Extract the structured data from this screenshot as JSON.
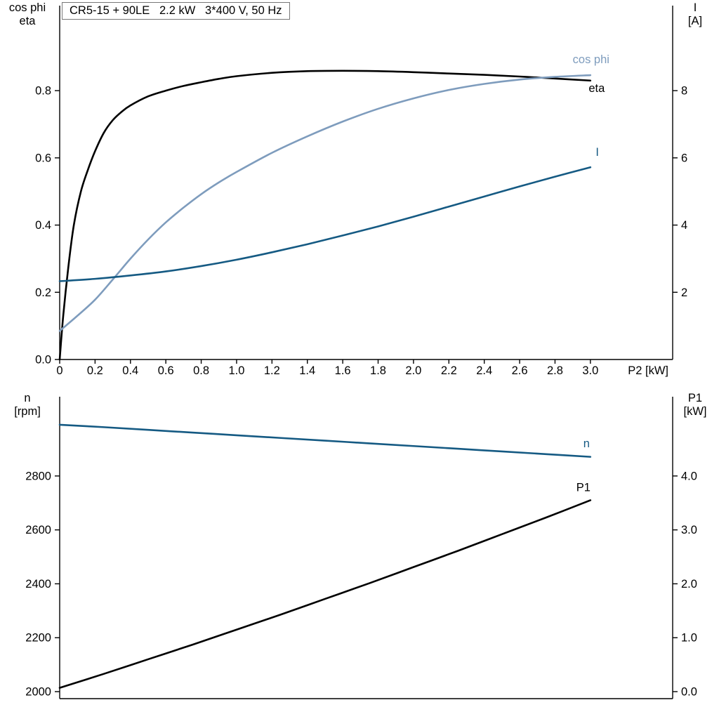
{
  "axis_titles": {
    "top_left": [
      "cos phi",
      "eta"
    ],
    "top_right": [
      "I",
      "[A]"
    ],
    "bottom_left": [
      "n",
      "[rpm]"
    ],
    "bottom_right": [
      "P1",
      "[kW]"
    ]
  },
  "colors": {
    "black": "#000000",
    "dark_blue": "#155a83",
    "light_blue": "#7e9cbd"
  },
  "chart_data": [
    {
      "type": "line",
      "title": "CR5-15 + 90LE   2.2 kW   3*400 V, 50 Hz",
      "grid": false,
      "legend": "curve-end labels",
      "axes": {
        "x": {
          "label": "P2 [kW]",
          "min": 0,
          "max": 3.465,
          "ticks": [
            0,
            0.2,
            0.4,
            0.6,
            0.8,
            1.0,
            1.2,
            1.4,
            1.6,
            1.8,
            2.0,
            2.2,
            2.4,
            2.6,
            2.8,
            3.0
          ],
          "tick_labels": [
            "0",
            "0.2",
            "0.4",
            "0.6",
            "0.8",
            "1.0",
            "1.2",
            "1.4",
            "1.6",
            "1.8",
            "2.0",
            "2.2",
            "2.4",
            "2.6",
            "2.8",
            "3.0"
          ]
        },
        "left": {
          "label": "cos phi / eta",
          "min": 0,
          "max": 1.053,
          "ticks": [
            0,
            0.2,
            0.4,
            0.6,
            0.8
          ],
          "tick_labels": [
            "0.0",
            "0.2",
            "0.4",
            "0.6",
            "0.8"
          ]
        },
        "right": {
          "label": "I [A]",
          "min": 0,
          "max": 10.53,
          "ticks": [
            2,
            4,
            6,
            8
          ],
          "tick_labels": [
            "2",
            "4",
            "6",
            "8"
          ]
        }
      },
      "series": [
        {
          "name": "eta",
          "axis": "left",
          "color": "#000000",
          "label_at": [
            2.99,
            0.796
          ],
          "points": [
            [
              0,
              0
            ],
            [
              0.02,
              0.13
            ],
            [
              0.05,
              0.28
            ],
            [
              0.08,
              0.4
            ],
            [
              0.12,
              0.5
            ],
            [
              0.16,
              0.565
            ],
            [
              0.2,
              0.62
            ],
            [
              0.25,
              0.675
            ],
            [
              0.3,
              0.712
            ],
            [
              0.35,
              0.737
            ],
            [
              0.4,
              0.756
            ],
            [
              0.5,
              0.783
            ],
            [
              0.6,
              0.8
            ],
            [
              0.7,
              0.814
            ],
            [
              0.8,
              0.825
            ],
            [
              0.9,
              0.835
            ],
            [
              1.0,
              0.843
            ],
            [
              1.2,
              0.853
            ],
            [
              1.4,
              0.858
            ],
            [
              1.6,
              0.859
            ],
            [
              1.8,
              0.858
            ],
            [
              2.0,
              0.855
            ],
            [
              2.2,
              0.851
            ],
            [
              2.4,
              0.847
            ],
            [
              2.6,
              0.842
            ],
            [
              2.8,
              0.836
            ],
            [
              3.0,
              0.83
            ]
          ]
        },
        {
          "name": "cos phi",
          "axis": "left",
          "color": "#7e9cbd",
          "label_at": [
            2.9,
            0.882
          ],
          "points": [
            [
              0,
              0.085
            ],
            [
              0.1,
              0.13
            ],
            [
              0.2,
              0.178
            ],
            [
              0.3,
              0.238
            ],
            [
              0.4,
              0.3
            ],
            [
              0.5,
              0.357
            ],
            [
              0.6,
              0.408
            ],
            [
              0.7,
              0.452
            ],
            [
              0.8,
              0.492
            ],
            [
              0.9,
              0.527
            ],
            [
              1.0,
              0.558
            ],
            [
              1.2,
              0.615
            ],
            [
              1.4,
              0.664
            ],
            [
              1.6,
              0.708
            ],
            [
              1.8,
              0.746
            ],
            [
              2.0,
              0.777
            ],
            [
              2.2,
              0.802
            ],
            [
              2.4,
              0.82
            ],
            [
              2.6,
              0.833
            ],
            [
              2.8,
              0.841
            ],
            [
              3.0,
              0.846
            ]
          ]
        },
        {
          "name": "I",
          "axis": "right",
          "color": "#155a83",
          "label_at": [
            3.03,
            6.06
          ],
          "points": [
            [
              0,
              2.33
            ],
            [
              0.2,
              2.4
            ],
            [
              0.4,
              2.5
            ],
            [
              0.6,
              2.62
            ],
            [
              0.8,
              2.78
            ],
            [
              1.0,
              2.97
            ],
            [
              1.2,
              3.19
            ],
            [
              1.4,
              3.43
            ],
            [
              1.6,
              3.69
            ],
            [
              1.8,
              3.96
            ],
            [
              2.0,
              4.25
            ],
            [
              2.2,
              4.55
            ],
            [
              2.4,
              4.85
            ],
            [
              2.6,
              5.15
            ],
            [
              2.8,
              5.44
            ],
            [
              3.0,
              5.72
            ]
          ]
        }
      ]
    },
    {
      "type": "line",
      "title": "",
      "grid": false,
      "legend": "curve-end labels",
      "axes": {
        "x": {
          "label": "",
          "min": 0,
          "max": 3.465,
          "ticks": [],
          "tick_labels": []
        },
        "left": {
          "label": "n [rpm]",
          "min": 1974,
          "max": 3094,
          "ticks": [
            2000,
            2200,
            2400,
            2600,
            2800
          ],
          "tick_labels": [
            "2000",
            "2200",
            "2400",
            "2600",
            "2800"
          ]
        },
        "right": {
          "label": "P1 [kW]",
          "min": -0.13,
          "max": 5.47,
          "ticks": [
            0,
            1,
            2,
            3,
            4
          ],
          "tick_labels": [
            "0.0",
            "1.0",
            "2.0",
            "3.0",
            "4.0"
          ]
        }
      },
      "series": [
        {
          "name": "n",
          "axis": "left",
          "color": "#155a83",
          "label_at": [
            2.96,
            2906
          ],
          "points": [
            [
              0,
              2990
            ],
            [
              0.25,
              2981
            ],
            [
              0.5,
              2971
            ],
            [
              0.75,
              2961
            ],
            [
              1.0,
              2951
            ],
            [
              1.25,
              2941
            ],
            [
              1.5,
              2931
            ],
            [
              1.75,
              2921
            ],
            [
              2.0,
              2911
            ],
            [
              2.25,
              2901
            ],
            [
              2.5,
              2891
            ],
            [
              2.75,
              2881
            ],
            [
              3.0,
              2871
            ]
          ]
        },
        {
          "name": "P1",
          "axis": "right",
          "color": "#000000",
          "label_at": [
            2.92,
            3.72
          ],
          "points": [
            [
              0,
              0.07
            ],
            [
              0.25,
              0.33
            ],
            [
              0.5,
              0.6
            ],
            [
              0.75,
              0.87
            ],
            [
              1.0,
              1.15
            ],
            [
              1.25,
              1.43
            ],
            [
              1.5,
              1.72
            ],
            [
              1.75,
              2.01
            ],
            [
              2.0,
              2.31
            ],
            [
              2.25,
              2.61
            ],
            [
              2.5,
              2.92
            ],
            [
              2.75,
              3.23
            ],
            [
              3.0,
              3.55
            ]
          ]
        }
      ]
    }
  ]
}
